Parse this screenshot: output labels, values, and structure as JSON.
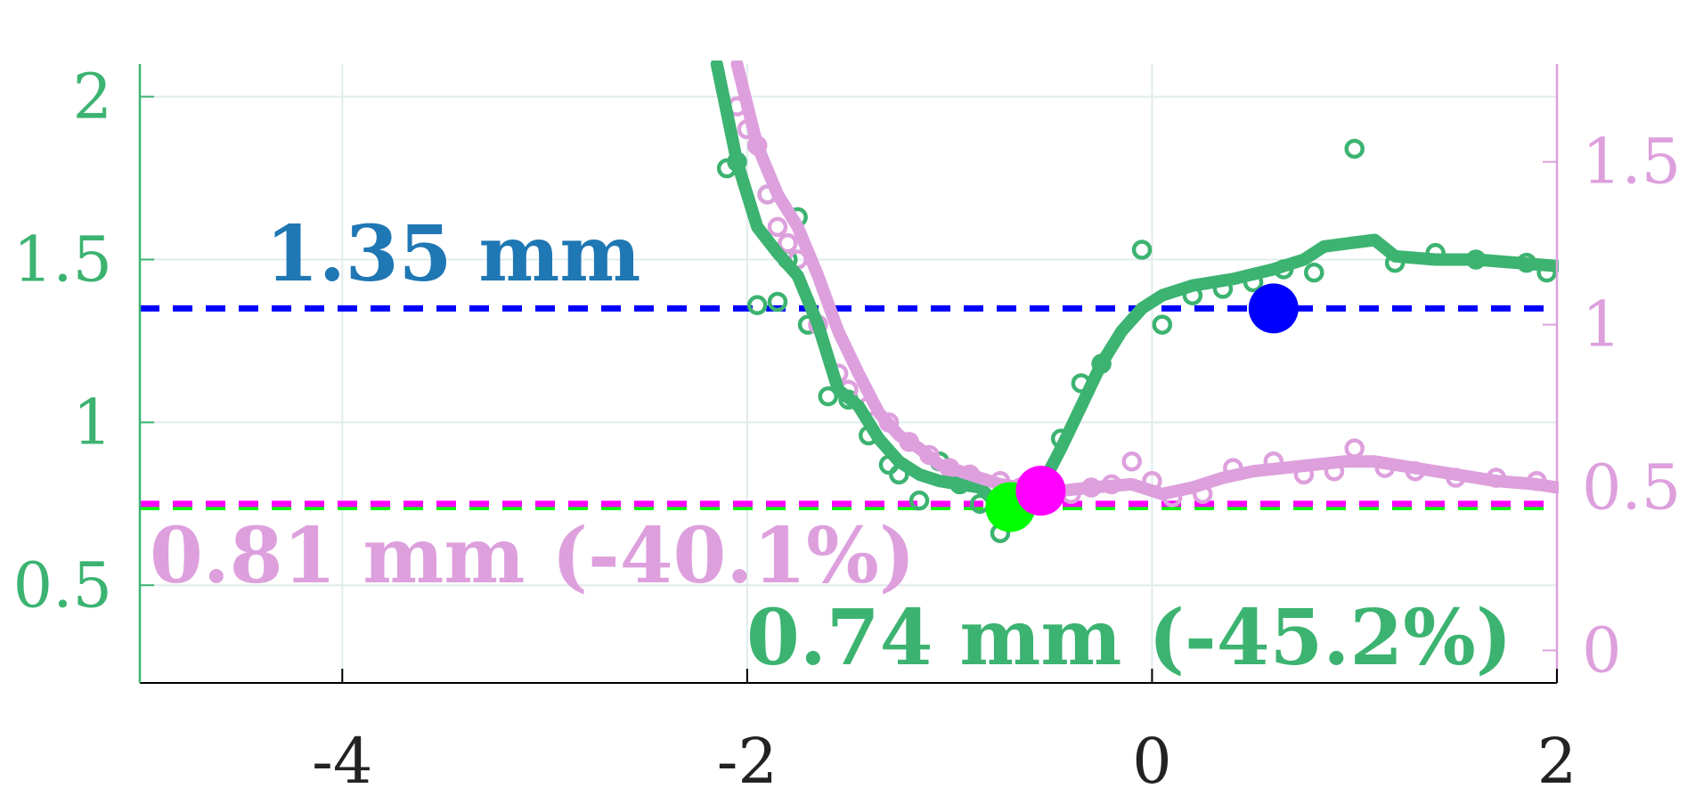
{
  "chart_data": {
    "type": "line",
    "title": "",
    "xlabel": "",
    "ylabel": "",
    "xlim": [
      -5,
      2
    ],
    "ylim_left": [
      0.2,
      2.1
    ],
    "ylim_right": [
      -0.1,
      1.8
    ],
    "xticks": [
      -4,
      -2,
      0,
      2
    ],
    "xtick_labels": [
      "-4",
      "-2",
      "0",
      "2"
    ],
    "yticks_left": [
      0.5,
      1,
      1.5,
      2
    ],
    "ytick_labels_left": [
      "0.5",
      "1",
      "1.5",
      "2"
    ],
    "yticks_right": [
      0,
      0.5,
      1,
      1.5
    ],
    "ytick_labels_right": [
      "0",
      "0.5",
      "1",
      "1.5"
    ],
    "grid": true,
    "colors": {
      "green": "#3cb371",
      "pink": "#dda0dd",
      "blue": "#0000ff",
      "magenta": "#ff00ff",
      "lime": "#00ff00",
      "annotation_blue": "#1f77b4",
      "axis": "#000000",
      "grid": "#e0ecec"
    },
    "reference_lines": [
      {
        "axis": "left",
        "y": 1.35,
        "color": "#0000ff",
        "style": "dashed"
      },
      {
        "axis": "left",
        "y": 0.74,
        "color": "#00ff00",
        "style": "dashed"
      },
      {
        "axis": "left",
        "y": 0.75,
        "color": "#ff00ff",
        "style": "dashed"
      }
    ],
    "markers": [
      {
        "axis": "left",
        "x": 0.6,
        "y": 1.35,
        "color": "#0000ff"
      },
      {
        "axis": "left",
        "x": -0.7,
        "y": 0.74,
        "color": "#00ff00"
      },
      {
        "axis": "right",
        "x": -0.55,
        "y": 0.49,
        "color": "#ff00ff"
      }
    ],
    "annotations": [
      {
        "text": "1.35 mm",
        "color": "#1f77b4"
      },
      {
        "text": "0.81 mm (-40.1%)",
        "color": "#dda0dd"
      },
      {
        "text": "0.74 mm (-45.2%)",
        "color": "#3cb371"
      }
    ],
    "series": [
      {
        "axis": "left",
        "kind": "line",
        "color": "#3cb371",
        "x": [
          -2.15,
          -2.05,
          -1.95,
          -1.85,
          -1.75,
          -1.65,
          -1.55,
          -1.45,
          -1.35,
          -1.25,
          -1.15,
          -1.05,
          -0.95,
          -0.85,
          -0.75,
          -0.65,
          -0.55,
          -0.45,
          -0.35,
          -0.25,
          -0.15,
          -0.05,
          0.05,
          0.2,
          0.4,
          0.6,
          0.75,
          0.85,
          1.1,
          1.2,
          1.4,
          1.6,
          1.8,
          2.0
        ],
        "y": [
          2.1,
          1.8,
          1.6,
          1.52,
          1.45,
          1.3,
          1.1,
          1.05,
          0.95,
          0.88,
          0.84,
          0.82,
          0.81,
          0.8,
          0.74,
          0.74,
          0.8,
          0.92,
          1.05,
          1.18,
          1.28,
          1.35,
          1.39,
          1.42,
          1.44,
          1.47,
          1.5,
          1.54,
          1.56,
          1.51,
          1.5,
          1.5,
          1.49,
          1.48
        ]
      },
      {
        "axis": "left",
        "kind": "scatter",
        "color": "#3cb371",
        "x": [
          -2.1,
          -2.05,
          -1.95,
          -1.9,
          -1.85,
          -1.8,
          -1.75,
          -1.7,
          -1.6,
          -1.5,
          -1.4,
          -1.3,
          -1.25,
          -1.15,
          -1.05,
          -0.95,
          -0.85,
          -0.75,
          -0.65,
          -0.55,
          -0.45,
          -0.35,
          -0.25,
          -0.05,
          0.05,
          0.2,
          0.35,
          0.5,
          0.65,
          0.8,
          1.0,
          1.2,
          1.4,
          1.6,
          1.85,
          1.95
        ],
        "y": [
          1.78,
          1.8,
          1.36,
          1.7,
          1.37,
          1.5,
          1.63,
          1.3,
          1.08,
          1.07,
          0.96,
          0.87,
          0.84,
          0.76,
          0.88,
          0.81,
          0.75,
          0.66,
          0.78,
          0.83,
          0.95,
          1.12,
          1.18,
          1.53,
          1.3,
          1.39,
          1.41,
          1.43,
          1.47,
          1.46,
          1.84,
          1.49,
          1.52,
          1.5,
          1.49,
          1.46
        ]
      },
      {
        "axis": "right",
        "kind": "line",
        "color": "#dda0dd",
        "x": [
          -2.05,
          -1.95,
          -1.85,
          -1.75,
          -1.65,
          -1.55,
          -1.45,
          -1.35,
          -1.25,
          -1.15,
          -1.05,
          -0.95,
          -0.85,
          -0.75,
          -0.65,
          -0.55,
          -0.45,
          -0.3,
          -0.1,
          0.05,
          0.2,
          0.35,
          0.5,
          0.65,
          0.8,
          0.95,
          1.1,
          1.3,
          1.5,
          1.7,
          1.9,
          2.0
        ],
        "y": [
          1.8,
          1.55,
          1.4,
          1.3,
          1.15,
          0.98,
          0.85,
          0.73,
          0.66,
          0.62,
          0.57,
          0.55,
          0.53,
          0.51,
          0.5,
          0.49,
          0.49,
          0.5,
          0.51,
          0.48,
          0.5,
          0.53,
          0.55,
          0.56,
          0.57,
          0.58,
          0.58,
          0.56,
          0.54,
          0.52,
          0.51,
          0.5
        ]
      },
      {
        "axis": "right",
        "kind": "scatter",
        "color": "#dda0dd",
        "x": [
          -2.05,
          -2.0,
          -1.95,
          -1.9,
          -1.85,
          -1.8,
          -1.75,
          -1.65,
          -1.55,
          -1.5,
          -1.4,
          -1.3,
          -1.2,
          -1.1,
          -1.0,
          -0.9,
          -0.75,
          -0.65,
          -0.5,
          -0.4,
          -0.3,
          -0.2,
          -0.1,
          0.0,
          0.1,
          0.25,
          0.4,
          0.6,
          0.75,
          0.9,
          1.0,
          1.15,
          1.3,
          1.5,
          1.7,
          1.9
        ],
        "y": [
          1.67,
          1.6,
          1.55,
          1.4,
          1.3,
          1.25,
          1.2,
          1.0,
          0.85,
          0.8,
          0.75,
          0.7,
          0.64,
          0.6,
          0.56,
          0.54,
          0.52,
          0.5,
          0.49,
          0.48,
          0.5,
          0.51,
          0.58,
          0.52,
          0.47,
          0.48,
          0.56,
          0.58,
          0.54,
          0.55,
          0.62,
          0.56,
          0.55,
          0.53,
          0.53,
          0.52
        ]
      }
    ]
  }
}
